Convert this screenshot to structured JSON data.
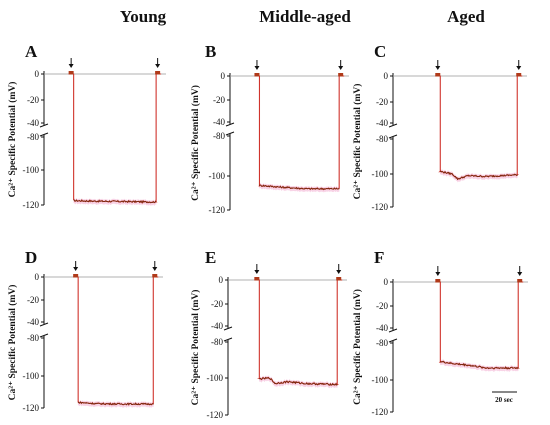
{
  "column_titles": [
    "Young",
    "Middle-aged",
    "Aged"
  ],
  "scale_bar_label": "20 sec",
  "colors": {
    "trace": "#d0342c",
    "trace_dark": "#7a2a10",
    "noise": "#f6c8e0",
    "baseline": "#999999",
    "marker": "#b03a1a",
    "axis": "#111111"
  },
  "chart_data": [
    {
      "type": "line",
      "panel": "A",
      "ylabel": "Ca²⁺ Specific Potential (mV)",
      "y_ticks": [
        0,
        -20,
        -40,
        -80,
        -100,
        -120
      ],
      "ylim": [
        -120,
        0
      ],
      "y_axis_break": [
        -40,
        -80
      ],
      "x_units": "sec",
      "xlim": [
        0,
        100
      ],
      "arrows": [
        6,
        98
      ],
      "baseline": 0,
      "plateau": [
        [
          8,
          -117.5
        ],
        [
          30,
          -117.8
        ],
        [
          60,
          -118
        ],
        [
          96,
          -118.3
        ]
      ]
    },
    {
      "type": "line",
      "panel": "B",
      "ylabel": "Ca²⁺ Specific Potential (mV)",
      "y_ticks": [
        0,
        -20,
        -40,
        -80,
        -100,
        -120
      ],
      "ylim": [
        -120,
        0
      ],
      "y_axis_break": [
        -40,
        -80
      ],
      "x_units": "sec",
      "xlim": [
        0,
        100
      ],
      "arrows": [
        6,
        98
      ],
      "baseline": 0,
      "plateau": [
        [
          8,
          -105.5
        ],
        [
          30,
          -106.5
        ],
        [
          60,
          -107.5
        ],
        [
          96,
          -107.5
        ]
      ]
    },
    {
      "type": "line",
      "panel": "C",
      "ylabel": "Ca²⁺ Specific Potential (mV)",
      "y_ticks": [
        0,
        -20,
        -40,
        -80,
        -100,
        -120
      ],
      "ylim": [
        -120,
        0
      ],
      "y_axis_break": [
        -40,
        -80
      ],
      "x_units": "sec",
      "xlim": [
        0,
        100
      ],
      "arrows": [
        6,
        98
      ],
      "baseline": 0,
      "plateau": [
        [
          8,
          -98.5
        ],
        [
          22,
          -100
        ],
        [
          28,
          -103
        ],
        [
          40,
          -101
        ],
        [
          60,
          -101.5
        ],
        [
          96,
          -100.5
        ]
      ]
    },
    {
      "type": "line",
      "panel": "D",
      "ylabel": "Ca²⁺ Specific Potential (mV)",
      "y_ticks": [
        0,
        -20,
        -40,
        -80,
        -100,
        -120
      ],
      "ylim": [
        -120,
        0
      ],
      "y_axis_break": [
        -40,
        -80
      ],
      "x_units": "sec",
      "xlim": [
        0,
        100
      ],
      "arrows": [
        6,
        98
      ],
      "baseline": 0,
      "plateau": [
        [
          8,
          -116.5
        ],
        [
          30,
          -117.3
        ],
        [
          60,
          -117.5
        ],
        [
          96,
          -117.5
        ]
      ]
    },
    {
      "type": "line",
      "panel": "E",
      "ylabel": "Ca²⁺ Specific Potential (mV)",
      "y_ticks": [
        0,
        -20,
        -40,
        -80,
        -100,
        -120
      ],
      "ylim": [
        -120,
        0
      ],
      "y_axis_break": [
        -40,
        -80
      ],
      "x_units": "sec",
      "xlim": [
        0,
        100
      ],
      "arrows": [
        6,
        98
      ],
      "baseline": 0,
      "plateau": [
        [
          8,
          -100.5
        ],
        [
          20,
          -100
        ],
        [
          26,
          -103
        ],
        [
          40,
          -102
        ],
        [
          60,
          -103
        ],
        [
          96,
          -103.5
        ]
      ]
    },
    {
      "type": "line",
      "panel": "F",
      "ylabel": "Ca²⁺ Specific Potential (mV)",
      "y_ticks": [
        0,
        -20,
        -40,
        -80,
        -100,
        -120
      ],
      "ylim": [
        -120,
        0
      ],
      "y_axis_break": [
        -40,
        -80
      ],
      "x_units": "sec",
      "xlim": [
        0,
        100
      ],
      "arrows": [
        6,
        98
      ],
      "baseline": 0,
      "plateau": [
        [
          8,
          -90
        ],
        [
          20,
          -91
        ],
        [
          40,
          -92
        ],
        [
          60,
          -93.5
        ],
        [
          96,
          -93.5
        ]
      ]
    }
  ]
}
